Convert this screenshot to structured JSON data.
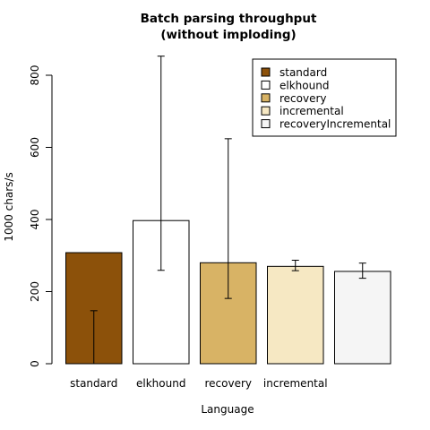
{
  "chart_data": {
    "type": "bar",
    "title_line1": "Batch parsing throughput",
    "title_line2": "(without imploding)",
    "xlabel": "Language",
    "ylabel": "1000 chars/s",
    "ylim": [
      0,
      870
    ],
    "yticks": [
      0,
      200,
      400,
      600,
      800
    ],
    "categories": [
      "standard",
      "elkhound",
      "recovery",
      "incremental",
      ""
    ],
    "values": [
      308,
      397,
      280,
      270,
      256
    ],
    "error_low": [
      0,
      259,
      181,
      258,
      237
    ],
    "error_high": [
      147,
      853,
      624,
      287,
      279
    ],
    "colors": [
      "#8c510a",
      "#ffffff",
      "#d8b365",
      "#f6e8c3",
      "#f5f5f5"
    ],
    "legend": {
      "position": "top-right",
      "entries": [
        "standard",
        "elkhound",
        "recovery",
        "incremental",
        "recoveryIncremental"
      ]
    },
    "grid": false
  }
}
